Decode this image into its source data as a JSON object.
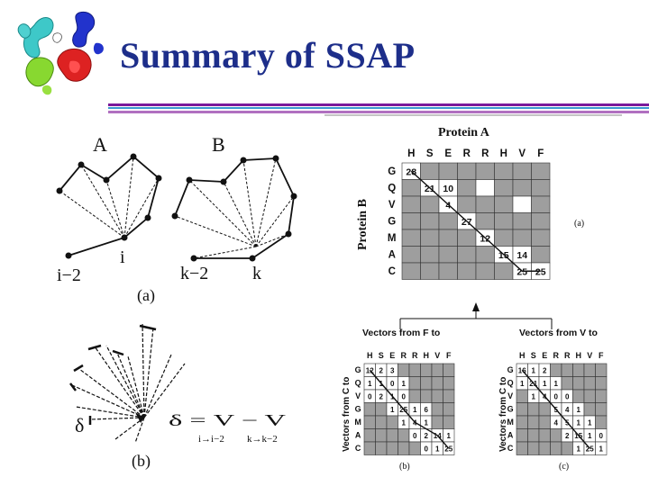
{
  "slide": {
    "title": "Summary of SSAP",
    "rule_colors": [
      "#7a1a9a",
      "#3a9ad0",
      "#b070c0"
    ]
  },
  "figure_a": {
    "label_A": "A",
    "label_B": "B",
    "point_i": "i",
    "point_i_minus_2": "i−2",
    "point_k": "k",
    "point_k_minus_2": "k−2",
    "caption": "(a)"
  },
  "figure_b": {
    "delta_symbol": "δ",
    "equation": "δ = V − V",
    "sub_left": "i→i−2",
    "sub_right": "k→k−2",
    "caption": "(b)"
  },
  "matrix_a": {
    "title": "Protein A",
    "row_axis_label": "Protein B",
    "columns": [
      "H",
      "S",
      "E",
      "R",
      "R",
      "H",
      "V",
      "F"
    ],
    "rows": [
      "G",
      "Q",
      "V",
      "G",
      "M",
      "A",
      "C"
    ],
    "cells": [
      [
        "28",
        "",
        "",
        "",
        "",
        "",
        "",
        ""
      ],
      [
        "",
        "21",
        "10",
        "",
        "",
        "",
        "",
        ""
      ],
      [
        "",
        "",
        "4",
        "",
        "",
        "",
        "",
        ""
      ],
      [
        "",
        "",
        "",
        "27",
        "",
        "",
        "",
        ""
      ],
      [
        "",
        "",
        "",
        "",
        "12",
        "",
        "",
        ""
      ],
      [
        "",
        "",
        "",
        "",
        "",
        "15",
        "14",
        ""
      ],
      [
        "",
        "",
        "",
        "",
        "",
        "",
        "25",
        "25"
      ]
    ],
    "shade": [
      [
        0,
        1,
        1,
        1,
        1,
        1,
        1,
        1
      ],
      [
        1,
        0,
        0,
        1,
        0,
        1,
        1,
        1
      ],
      [
        1,
        1,
        0,
        1,
        1,
        1,
        0,
        1
      ],
      [
        1,
        1,
        1,
        0,
        1,
        1,
        1,
        1
      ],
      [
        1,
        1,
        1,
        1,
        0,
        1,
        1,
        1
      ],
      [
        1,
        1,
        1,
        1,
        1,
        0,
        0,
        1
      ],
      [
        1,
        1,
        1,
        1,
        1,
        1,
        0,
        0
      ]
    ],
    "caption": "(a)"
  },
  "matrix_b": {
    "title": "Vectors from F to",
    "row_axis_label": "Vectors from C to",
    "columns": [
      "H",
      "S",
      "E",
      "R",
      "R",
      "H",
      "V",
      "F"
    ],
    "rows": [
      "G",
      "Q",
      "V",
      "G",
      "M",
      "A",
      "C"
    ],
    "cells": [
      [
        "12",
        "2",
        "3",
        "",
        "",
        "",
        "",
        ""
      ],
      [
        "1",
        "1",
        "0",
        "1",
        "",
        "",
        "",
        ""
      ],
      [
        "0",
        "2",
        "1",
        "0",
        "",
        "",
        "",
        ""
      ],
      [
        "",
        "",
        "1",
        "25",
        "1",
        "6",
        "",
        ""
      ],
      [
        "",
        "",
        "",
        "1",
        "4",
        "1",
        "",
        ""
      ],
      [
        "",
        "",
        "",
        "",
        "0",
        "2",
        "14",
        "1"
      ],
      [
        "",
        "",
        "",
        "",
        "",
        "0",
        "1",
        "25"
      ]
    ],
    "shade": [
      [
        0,
        0,
        0,
        1,
        1,
        1,
        1,
        1
      ],
      [
        0,
        0,
        0,
        0,
        1,
        1,
        1,
        1
      ],
      [
        0,
        0,
        0,
        0,
        1,
        1,
        1,
        1
      ],
      [
        1,
        1,
        0,
        0,
        0,
        0,
        1,
        1
      ],
      [
        1,
        1,
        1,
        0,
        0,
        0,
        1,
        1
      ],
      [
        1,
        1,
        1,
        1,
        0,
        0,
        0,
        0
      ],
      [
        1,
        1,
        1,
        1,
        1,
        0,
        0,
        0
      ]
    ],
    "caption": "(b)"
  },
  "matrix_c": {
    "title": "Vectors from V to",
    "row_axis_label": "Vectors from C to",
    "columns": [
      "H",
      "S",
      "E",
      "R",
      "R",
      "H",
      "V",
      "F"
    ],
    "rows": [
      "G",
      "Q",
      "V",
      "G",
      "M",
      "A",
      "C"
    ],
    "cells": [
      [
        "16",
        "1",
        "2",
        "",
        "",
        "",
        "",
        ""
      ],
      [
        "1",
        "21",
        "1",
        "1",
        "",
        "",
        "",
        ""
      ],
      [
        "",
        "1",
        "4",
        "0",
        "0",
        "",
        "",
        ""
      ],
      [
        "",
        "",
        "",
        "5",
        "4",
        "1",
        "",
        ""
      ],
      [
        "",
        "",
        "",
        "4",
        "5",
        "1",
        "1",
        ""
      ],
      [
        "",
        "",
        "",
        "",
        "2",
        "15",
        "1",
        "0"
      ],
      [
        "",
        "",
        "",
        "",
        "",
        "1",
        "25",
        "1"
      ]
    ],
    "shade": [
      [
        0,
        0,
        0,
        1,
        1,
        1,
        1,
        1
      ],
      [
        0,
        0,
        0,
        0,
        1,
        1,
        1,
        1
      ],
      [
        1,
        0,
        0,
        0,
        0,
        1,
        1,
        1
      ],
      [
        1,
        1,
        1,
        0,
        0,
        0,
        1,
        1
      ],
      [
        1,
        1,
        1,
        0,
        0,
        0,
        0,
        1
      ],
      [
        1,
        1,
        1,
        1,
        0,
        0,
        0,
        0
      ],
      [
        1,
        1,
        1,
        1,
        1,
        0,
        0,
        0
      ]
    ],
    "caption": "(c)"
  },
  "colors": {
    "title": "#1d2e8a",
    "cell_shade": "#9e9e9e",
    "cell_light": "#ffffff",
    "ink": "#111111"
  }
}
